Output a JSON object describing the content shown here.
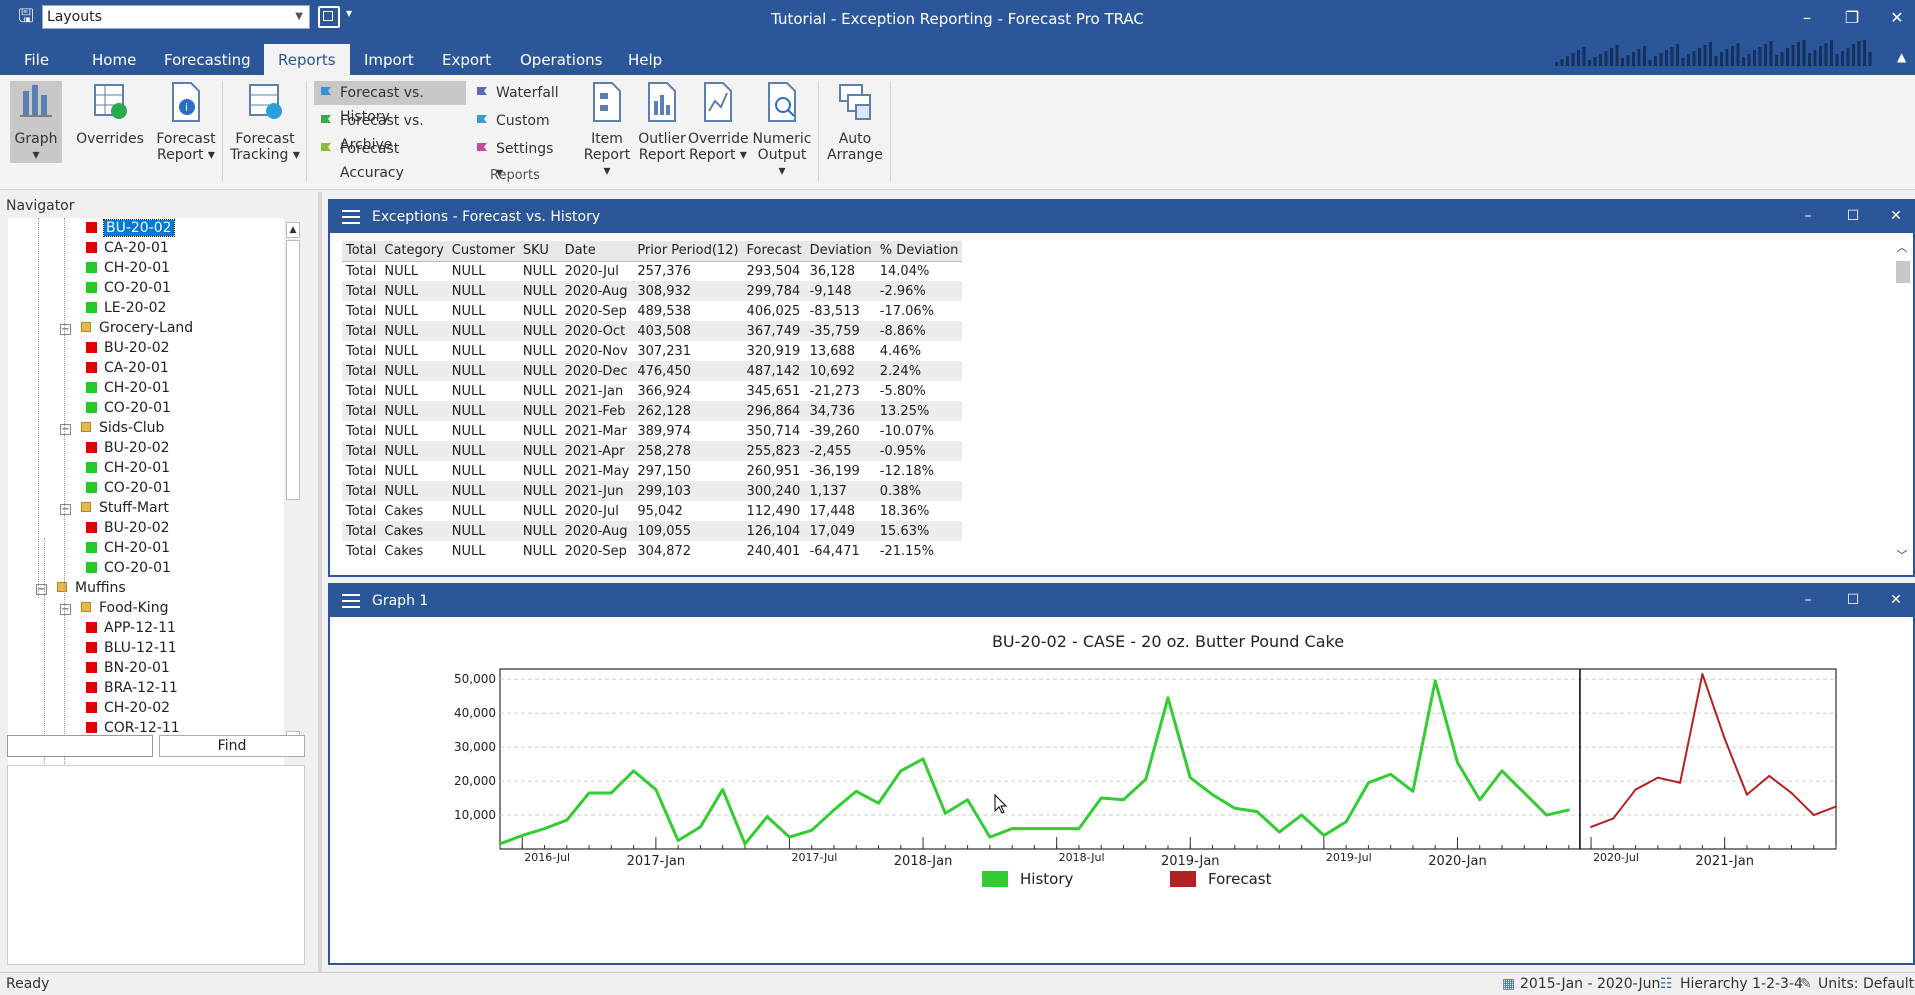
{
  "title_bar": {
    "layouts_value": "Layouts",
    "window_title": "Tutorial - Exception Reporting - Forecast Pro TRAC",
    "minimize": "–",
    "restore": "❐",
    "close": "✕"
  },
  "tabs": [
    "File",
    "Home",
    "Forecasting",
    "Reports",
    "Import",
    "Export",
    "Operations",
    "Help"
  ],
  "active_tab": "Reports",
  "ribbon": {
    "graph": "Graph",
    "overrides": "Overrides",
    "forecast_report": "Forecast Report",
    "forecast_tracking": "Forecast Tracking",
    "fvh": "Forecast vs. History",
    "fva": "Forecast vs. Archive",
    "accuracy": "Forecast Accuracy",
    "waterfall": "Waterfall",
    "custom": "Custom",
    "settings": "Settings",
    "item_report": "Item Report",
    "outlier_report": "Outlier Report",
    "override_report": "Override Report",
    "numeric_output": "Numeric Output",
    "auto_arrange": "Auto Arrange",
    "group_label": "Reports"
  },
  "navigator": {
    "title": "Navigator",
    "find": "Find",
    "rows": [
      {
        "label": "BU-20-02",
        "level": 3,
        "kind": "red",
        "selected": true
      },
      {
        "label": "CA-20-01",
        "level": 3,
        "kind": "red"
      },
      {
        "label": "CH-20-01",
        "level": 3,
        "kind": "green"
      },
      {
        "label": "CO-20-01",
        "level": 3,
        "kind": "green"
      },
      {
        "label": "LE-20-02",
        "level": 3,
        "kind": "green"
      },
      {
        "label": "Grocery-Land",
        "level": 2,
        "kind": "folder"
      },
      {
        "label": "BU-20-02",
        "level": 3,
        "kind": "red"
      },
      {
        "label": "CA-20-01",
        "level": 3,
        "kind": "red"
      },
      {
        "label": "CH-20-01",
        "level": 3,
        "kind": "green"
      },
      {
        "label": "CO-20-01",
        "level": 3,
        "kind": "green"
      },
      {
        "label": "Sids-Club",
        "level": 2,
        "kind": "folder"
      },
      {
        "label": "BU-20-02",
        "level": 3,
        "kind": "red"
      },
      {
        "label": "CH-20-01",
        "level": 3,
        "kind": "green"
      },
      {
        "label": "CO-20-01",
        "level": 3,
        "kind": "green"
      },
      {
        "label": "Stuff-Mart",
        "level": 2,
        "kind": "folder"
      },
      {
        "label": "BU-20-02",
        "level": 3,
        "kind": "red"
      },
      {
        "label": "CH-20-01",
        "level": 3,
        "kind": "green"
      },
      {
        "label": "CO-20-01",
        "level": 3,
        "kind": "green"
      },
      {
        "label": "Muffins",
        "level": 1,
        "kind": "folder"
      },
      {
        "label": "Food-King",
        "level": 2,
        "kind": "folder"
      },
      {
        "label": "APP-12-11",
        "level": 3,
        "kind": "red"
      },
      {
        "label": "BLU-12-11",
        "level": 3,
        "kind": "red"
      },
      {
        "label": "BN-20-01",
        "level": 3,
        "kind": "red"
      },
      {
        "label": "BRA-12-11",
        "level": 3,
        "kind": "red"
      },
      {
        "label": "CH-20-02",
        "level": 3,
        "kind": "red"
      },
      {
        "label": "COR-12-11",
        "level": 3,
        "kind": "red"
      }
    ]
  },
  "exceptions": {
    "title": "Exceptions - Forecast vs. History",
    "columns": [
      "Total",
      "Category",
      "Customer",
      "SKU",
      "Date",
      "Prior Period(12)",
      "Forecast",
      "Deviation",
      "% Deviation"
    ],
    "rows": [
      [
        "Total",
        "NULL",
        "NULL",
        "NULL",
        "2020-Jul",
        "257,376",
        "293,504",
        "36,128",
        "14.04%"
      ],
      [
        "Total",
        "NULL",
        "NULL",
        "NULL",
        "2020-Aug",
        "308,932",
        "299,784",
        "-9,148",
        "-2.96%"
      ],
      [
        "Total",
        "NULL",
        "NULL",
        "NULL",
        "2020-Sep",
        "489,538",
        "406,025",
        "-83,513",
        "-17.06%"
      ],
      [
        "Total",
        "NULL",
        "NULL",
        "NULL",
        "2020-Oct",
        "403,508",
        "367,749",
        "-35,759",
        "-8.86%"
      ],
      [
        "Total",
        "NULL",
        "NULL",
        "NULL",
        "2020-Nov",
        "307,231",
        "320,919",
        "13,688",
        "4.46%"
      ],
      [
        "Total",
        "NULL",
        "NULL",
        "NULL",
        "2020-Dec",
        "476,450",
        "487,142",
        "10,692",
        "2.24%"
      ],
      [
        "Total",
        "NULL",
        "NULL",
        "NULL",
        "2021-Jan",
        "366,924",
        "345,651",
        "-21,273",
        "-5.80%"
      ],
      [
        "Total",
        "NULL",
        "NULL",
        "NULL",
        "2021-Feb",
        "262,128",
        "296,864",
        "34,736",
        "13.25%"
      ],
      [
        "Total",
        "NULL",
        "NULL",
        "NULL",
        "2021-Mar",
        "389,974",
        "350,714",
        "-39,260",
        "-10.07%"
      ],
      [
        "Total",
        "NULL",
        "NULL",
        "NULL",
        "2021-Apr",
        "258,278",
        "255,823",
        "-2,455",
        "-0.95%"
      ],
      [
        "Total",
        "NULL",
        "NULL",
        "NULL",
        "2021-May",
        "297,150",
        "260,951",
        "-36,199",
        "-12.18%"
      ],
      [
        "Total",
        "NULL",
        "NULL",
        "NULL",
        "2021-Jun",
        "299,103",
        "300,240",
        "1,137",
        "0.38%"
      ],
      [
        "Total",
        "Cakes",
        "NULL",
        "NULL",
        "2020-Jul",
        "95,042",
        "112,490",
        "17,448",
        "18.36%"
      ],
      [
        "Total",
        "Cakes",
        "NULL",
        "NULL",
        "2020-Aug",
        "109,055",
        "126,104",
        "17,049",
        "15.63%"
      ],
      [
        "Total",
        "Cakes",
        "NULL",
        "NULL",
        "2020-Sep",
        "304,872",
        "240,401",
        "-64,471",
        "-21.15%"
      ]
    ]
  },
  "graph_panel": {
    "title": "Graph 1"
  },
  "chart_data": {
    "type": "line",
    "title": "BU-20-02 - CASE - 20 oz. Butter Pound Cake",
    "xlabel": "",
    "ylabel": "",
    "ylim": [
      0,
      53000
    ],
    "y_ticks": [
      "10,000",
      "20,000",
      "30,000",
      "40,000",
      "50,000"
    ],
    "x_tick_labels": [
      "2016-Jul",
      "2017-Jan",
      "2017-Jul",
      "2018-Jan",
      "2018-Jul",
      "2019-Jan",
      "2019-Jul",
      "2020-Jan",
      "2020-Jul",
      "2021-Jan"
    ],
    "legend_position": "bottom",
    "series": [
      {
        "name": "History",
        "color": "#33cc33",
        "start": "2016-Jun",
        "values": [
          1500,
          4000,
          6000,
          8500,
          16500,
          16500,
          23000,
          17500,
          2500,
          6500,
          17500,
          1500,
          9500,
          3500,
          5500,
          11500,
          17000,
          13500,
          23000,
          26500,
          10500,
          14500,
          3500,
          6000,
          6000,
          6000,
          6000,
          15000,
          14500,
          20500,
          44500,
          21000,
          16000,
          12000,
          11000,
          5000,
          10000,
          4000,
          8000,
          19500,
          22000,
          17000,
          49500,
          25500,
          14500,
          23000,
          16500,
          10000,
          11500
        ],
        "last": "2020-Jun"
      },
      {
        "name": "Forecast",
        "color": "#b22222",
        "start": "2020-Jul",
        "values": [
          6500,
          9000,
          17500,
          21000,
          19500,
          51500,
          32500,
          16000,
          21500,
          16500,
          10000,
          12500
        ],
        "last": "2021-Jun"
      }
    ]
  },
  "status": {
    "ready": "Ready",
    "period": "2015-Jan - 2020-Jun",
    "hierarchy": "Hierarchy 1-2-3-4",
    "units": "Units: Default"
  }
}
